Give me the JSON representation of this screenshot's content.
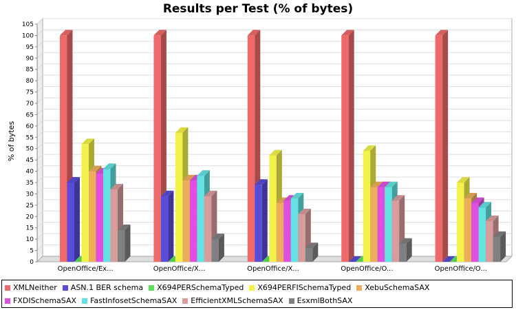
{
  "chart_data": {
    "type": "bar",
    "title": "Results per Test (% of bytes)",
    "ylabel": "% of bytes",
    "xlabel": "",
    "ylim": [
      0,
      105
    ],
    "yticks": [
      0,
      5,
      10,
      15,
      20,
      25,
      30,
      35,
      40,
      45,
      50,
      55,
      60,
      65,
      70,
      75,
      80,
      85,
      90,
      95,
      100,
      105
    ],
    "grid": true,
    "three_d": true,
    "legend_position": "bottom",
    "categories": [
      "OpenOffice/Ex...",
      "OpenOffice/X...",
      "OpenOffice/X...",
      "OpenOffice/O...",
      "OpenOffice/O..."
    ],
    "series": [
      {
        "name": "XMLNeither",
        "color": "#ee6a6a",
        "values": [
          100,
          100,
          100,
          100,
          100
        ]
      },
      {
        "name": "ASN.1 BER schema",
        "color": "#5a4cd8",
        "values": [
          35,
          29,
          34,
          0,
          0
        ]
      },
      {
        "name": "X694PERSchemaTyped",
        "color": "#5fe05f",
        "values": [
          0,
          0,
          0,
          0,
          0
        ]
      },
      {
        "name": "X694PERFISchemaTyped",
        "color": "#f2f24a",
        "values": [
          52,
          57,
          47,
          49,
          35
        ]
      },
      {
        "name": "XebuSchemaSAX",
        "color": "#ecae5a",
        "values": [
          40,
          36,
          26,
          33,
          28
        ]
      },
      {
        "name": "FXDISchemaSAX",
        "color": "#e050e0",
        "values": [
          39,
          36,
          27,
          33,
          26
        ]
      },
      {
        "name": "FastInfosetSchemaSAX",
        "color": "#62e2e2",
        "values": [
          41,
          38,
          28,
          33,
          24
        ]
      },
      {
        "name": "EfficientXMLSchemaSAX",
        "color": "#d99c9c",
        "values": [
          32,
          29,
          21,
          27,
          18
        ]
      },
      {
        "name": "EsxmlBothSAX",
        "color": "#808080",
        "values": [
          14,
          10,
          6,
          8,
          11
        ]
      }
    ]
  }
}
